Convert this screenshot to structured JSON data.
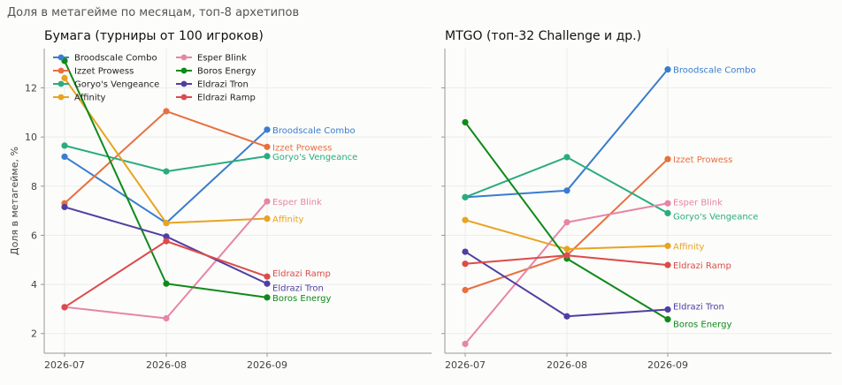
{
  "figure_title": "Доля в метагейме по месяцам, топ-8 архетипов",
  "chart_data": [
    {
      "type": "line",
      "title": "Бумага (турниры от 100 игроков)",
      "xlabel": "",
      "ylabel": "Доля в метагейме, %",
      "categories": [
        "2026-07",
        "2026-08",
        "2026-09"
      ],
      "ylim": [
        1.2,
        13.6
      ],
      "yticks": [
        2,
        4,
        6,
        8,
        10,
        12
      ],
      "grid": true,
      "legend": "top-left",
      "series": [
        {
          "name": "Broodscale Combo",
          "color": "#3a7dce",
          "values": [
            9.2,
            6.5,
            10.3
          ]
        },
        {
          "name": "Izzet Prowess",
          "color": "#e8703f",
          "values": [
            7.3,
            11.05,
            9.6
          ]
        },
        {
          "name": "Goryo's Vengeance",
          "color": "#2aac7f",
          "values": [
            9.65,
            8.6,
            9.22
          ]
        },
        {
          "name": "Affinity",
          "color": "#e8a322",
          "values": [
            12.4,
            6.5,
            6.68
          ]
        },
        {
          "name": "Esper Blink",
          "color": "#e785a9",
          "values": [
            3.08,
            2.62,
            7.38
          ]
        },
        {
          "name": "Boros Energy",
          "color": "#0f8a1a",
          "values": [
            13.1,
            4.03,
            3.47
          ]
        },
        {
          "name": "Eldrazi Tron",
          "color": "#4f3fa3",
          "values": [
            7.15,
            5.95,
            4.03
          ]
        },
        {
          "name": "Eldrazi Ramp",
          "color": "#dc4b4b",
          "values": [
            3.07,
            5.76,
            4.32
          ]
        }
      ]
    },
    {
      "type": "line",
      "title": "MTGO (топ-32 Challenge и др.)",
      "xlabel": "",
      "ylabel": "",
      "categories": [
        "2026-07",
        "2026-08",
        "2026-09"
      ],
      "ylim": [
        1.2,
        13.6
      ],
      "yticks": [
        2,
        4,
        6,
        8,
        10,
        12
      ],
      "grid": true,
      "legend": "",
      "series": [
        {
          "name": "Broodscale Combo",
          "color": "#3a7dce",
          "values": [
            7.55,
            7.82,
            12.75
          ]
        },
        {
          "name": "Izzet Prowess",
          "color": "#e8703f",
          "values": [
            3.77,
            5.18,
            9.1
          ]
        },
        {
          "name": "Goryo's Vengeance",
          "color": "#2aac7f",
          "values": [
            7.55,
            9.18,
            6.9
          ]
        },
        {
          "name": "Affinity",
          "color": "#e8a322",
          "values": [
            6.62,
            5.44,
            5.57
          ]
        },
        {
          "name": "Esper Blink",
          "color": "#e785a9",
          "values": [
            1.58,
            6.53,
            7.3
          ]
        },
        {
          "name": "Boros Energy",
          "color": "#0f8a1a",
          "values": [
            10.6,
            5.05,
            2.58
          ]
        },
        {
          "name": "Eldrazi Tron",
          "color": "#4f3fa3",
          "values": [
            5.33,
            2.7,
            2.98
          ]
        },
        {
          "name": "Eldrazi Ramp",
          "color": "#dc4b4b",
          "values": [
            4.84,
            5.18,
            4.79
          ]
        }
      ]
    }
  ]
}
